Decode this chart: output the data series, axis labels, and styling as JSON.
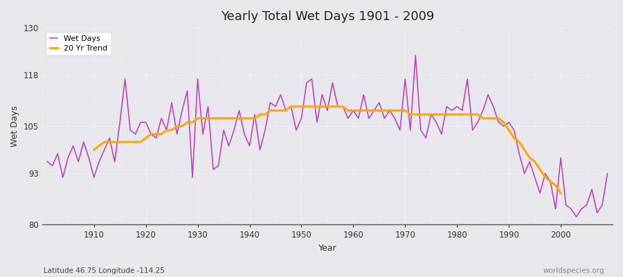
{
  "title": "Yearly Total Wet Days 1901 - 2009",
  "xlabel": "Year",
  "ylabel": "Wet Days",
  "subtitle": "Latitude 46.75 Longitude -114.25",
  "watermark": "worldspecies.org",
  "wet_days_color": "#BB44BB",
  "trend_color": "#FFA500",
  "background_color": "#E8E8EC",
  "fig_background_color": "#E8E8EC",
  "ylim": [
    80,
    130
  ],
  "yticks": [
    80,
    93,
    105,
    118,
    130
  ],
  "xlim": [
    1900,
    2010
  ],
  "xticks": [
    1910,
    1920,
    1930,
    1940,
    1950,
    1960,
    1970,
    1980,
    1990,
    2000
  ],
  "years": [
    1901,
    1902,
    1903,
    1904,
    1905,
    1906,
    1907,
    1908,
    1909,
    1910,
    1911,
    1912,
    1913,
    1914,
    1915,
    1916,
    1917,
    1918,
    1919,
    1920,
    1921,
    1922,
    1923,
    1924,
    1925,
    1926,
    1927,
    1928,
    1929,
    1930,
    1931,
    1932,
    1933,
    1934,
    1935,
    1936,
    1937,
    1938,
    1939,
    1940,
    1941,
    1942,
    1943,
    1944,
    1945,
    1946,
    1947,
    1948,
    1949,
    1950,
    1951,
    1952,
    1953,
    1954,
    1955,
    1956,
    1957,
    1958,
    1959,
    1960,
    1961,
    1962,
    1963,
    1964,
    1965,
    1966,
    1967,
    1968,
    1969,
    1970,
    1971,
    1972,
    1973,
    1974,
    1975,
    1976,
    1977,
    1978,
    1979,
    1980,
    1981,
    1982,
    1983,
    1984,
    1985,
    1986,
    1987,
    1988,
    1989,
    1990,
    1991,
    1992,
    1993,
    1994,
    1995,
    1996,
    1997,
    1998,
    1999,
    2000,
    2001,
    2002,
    2003,
    2004,
    2005,
    2006,
    2007,
    2008,
    2009
  ],
  "wet_days": [
    96,
    95,
    98,
    92,
    97,
    100,
    96,
    101,
    97,
    92,
    96,
    99,
    102,
    96,
    106,
    117,
    104,
    103,
    106,
    106,
    103,
    102,
    107,
    104,
    111,
    103,
    109,
    114,
    92,
    117,
    103,
    110,
    94,
    95,
    104,
    100,
    104,
    109,
    103,
    100,
    108,
    99,
    104,
    111,
    110,
    113,
    109,
    110,
    104,
    107,
    116,
    117,
    106,
    113,
    109,
    116,
    110,
    110,
    107,
    109,
    107,
    113,
    107,
    109,
    111,
    107,
    109,
    107,
    104,
    117,
    104,
    123,
    104,
    102,
    108,
    106,
    103,
    110,
    109,
    110,
    109,
    117,
    104,
    106,
    109,
    113,
    110,
    106,
    105,
    106,
    104,
    98,
    93,
    96,
    92,
    88,
    93,
    91,
    84,
    97,
    85,
    84,
    82,
    84,
    85,
    89,
    83,
    85,
    93
  ],
  "trend_20yr": [
    null,
    null,
    null,
    null,
    null,
    null,
    null,
    null,
    null,
    99,
    100,
    101,
    101,
    101,
    101,
    101,
    101,
    101,
    101,
    102,
    103,
    103,
    103,
    104,
    104,
    105,
    105,
    106,
    106,
    107,
    107,
    107,
    107,
    107,
    107,
    107,
    107,
    107,
    107,
    107,
    107,
    108,
    108,
    109,
    109,
    109,
    109,
    110,
    110,
    110,
    110,
    110,
    110,
    110,
    110,
    110,
    110,
    110,
    109,
    109,
    109,
    109,
    109,
    109,
    109,
    109,
    109,
    109,
    109,
    109,
    108,
    108,
    108,
    108,
    108,
    108,
    108,
    108,
    108,
    108,
    108,
    108,
    108,
    108,
    107,
    107,
    107,
    107,
    106,
    104,
    102,
    101,
    99,
    97,
    96,
    94,
    92,
    91,
    90,
    88,
    null,
    null,
    null,
    null,
    null,
    null,
    null,
    null,
    null
  ]
}
